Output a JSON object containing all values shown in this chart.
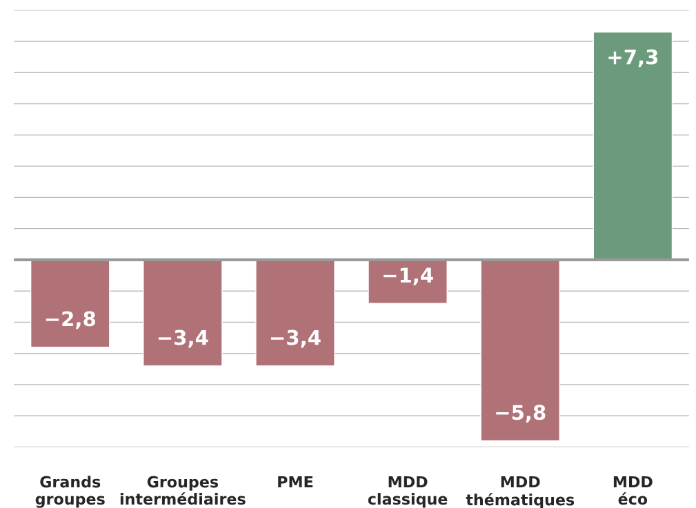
{
  "chart_data": {
    "type": "bar",
    "categories": [
      "Grands\ngroupes",
      "Groupes\nintermédiaires",
      "PME",
      "MDD\nclassique",
      "MDD\nthématiques",
      "MDD\néco"
    ],
    "values": [
      -2.8,
      -3.4,
      -3.4,
      -1.4,
      -5.8,
      7.3
    ],
    "colors": [
      "#b07177",
      "#b07177",
      "#b07177",
      "#b07177",
      "#b07177",
      "#6b9a7c"
    ],
    "value_labels": [
      "−2,8",
      "−3,4",
      "−3,4",
      "−1,4",
      "−5,8",
      "+7,3"
    ],
    "yticks": [
      {
        "value": -6,
        "label": null
      },
      {
        "value": -5,
        "label": null
      },
      {
        "value": -4,
        "label": null
      },
      {
        "value": -3,
        "label": null
      },
      {
        "value": -2,
        "label": null
      },
      {
        "value": -1,
        "label": null
      },
      {
        "value": 0,
        "label": null
      },
      {
        "value": 1,
        "label": null
      },
      {
        "value": 2,
        "label": null
      },
      {
        "value": 3,
        "label": null
      },
      {
        "value": 4,
        "label": null
      },
      {
        "value": 5,
        "label": null
      },
      {
        "value": 6,
        "label": null
      },
      {
        "value": 7,
        "label": null
      },
      {
        "value": 8,
        "label": null
      }
    ],
    "grid": "y",
    "tick_labels": "x",
    "ref_lines": [
      {
        "axis": "y",
        "value": 0,
        "color": "#999999"
      }
    ]
  }
}
